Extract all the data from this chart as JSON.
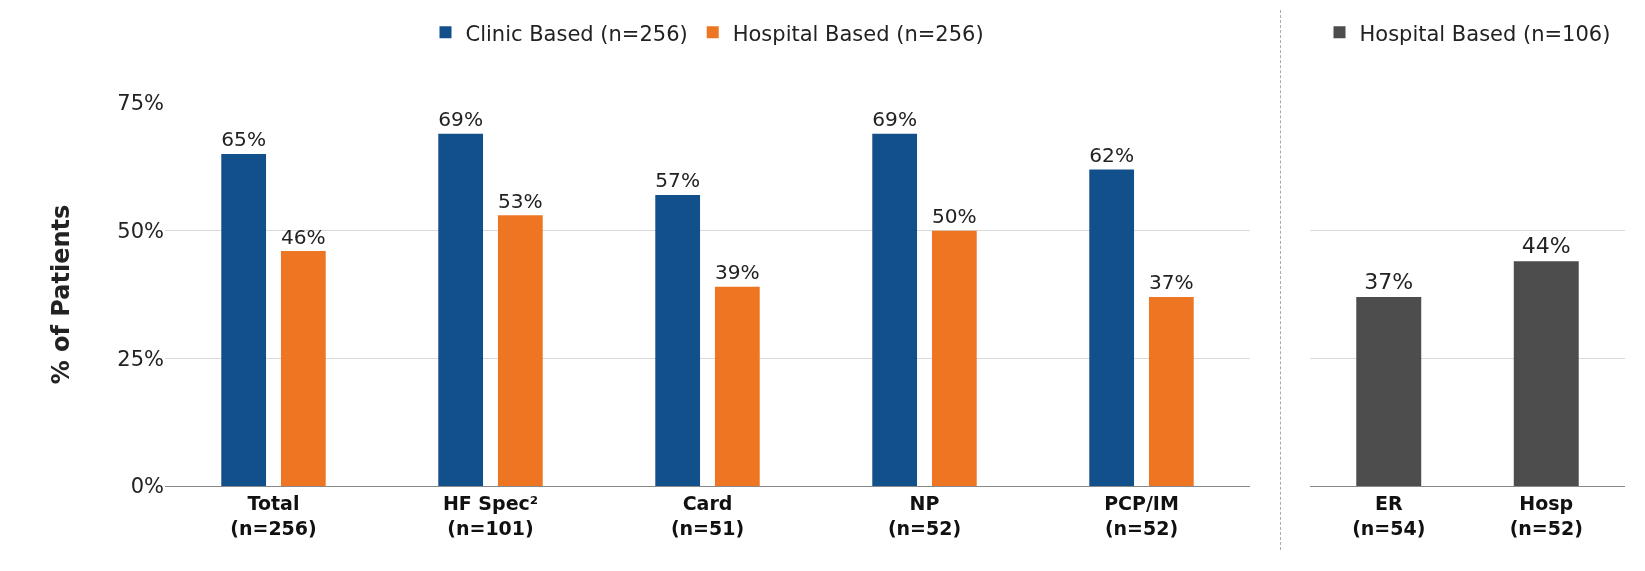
{
  "chart_data": [
    {
      "type": "bar",
      "ylabel": "% of Patients",
      "categories": [
        "Total (n=256)",
        "HF Spec² (n=101)",
        "Card (n=51)",
        "NP (n=52)",
        "PCP/IM (n=52)"
      ],
      "series": [
        {
          "name": "Clinic Based (n=256)",
          "color": "#12508b",
          "values": [
            65,
            69,
            57,
            69,
            62
          ],
          "value_labels": [
            "65%",
            "69%",
            "57%",
            "69%",
            "62%"
          ]
        },
        {
          "name": "Hospital Based (n=256)",
          "color": "#ee7623",
          "values": [
            46,
            53,
            39,
            50,
            37
          ],
          "value_labels": [
            "46%",
            "53%",
            "39%",
            "50%",
            "37%"
          ]
        }
      ],
      "ylim": [
        0,
        75
      ],
      "yticks": [
        {
          "value": 0,
          "label": "0%"
        },
        {
          "value": 25,
          "label": "25%"
        },
        {
          "value": 50,
          "label": "50%"
        },
        {
          "value": 75,
          "label": "75%"
        }
      ],
      "grid": "y",
      "legend": "top"
    },
    {
      "type": "bar",
      "categories": [
        "ER (n=54)",
        "Hosp (n=52)"
      ],
      "yticks": [
        {
          "value": 0,
          "label": null
        },
        {
          "value": 25,
          "label": null
        },
        {
          "value": 50,
          "label": null
        },
        {
          "value": 75,
          "label": null
        }
      ],
      "series": [
        {
          "name": "Hospital Based (n=106)",
          "color": "#4d4d4d",
          "values": [
            37,
            44
          ],
          "value_labels": [
            "37%",
            "44%"
          ]
        }
      ],
      "ylim": [
        0,
        75
      ],
      "grid": "y",
      "legend": "top",
      "tick_labels": "x"
    }
  ]
}
